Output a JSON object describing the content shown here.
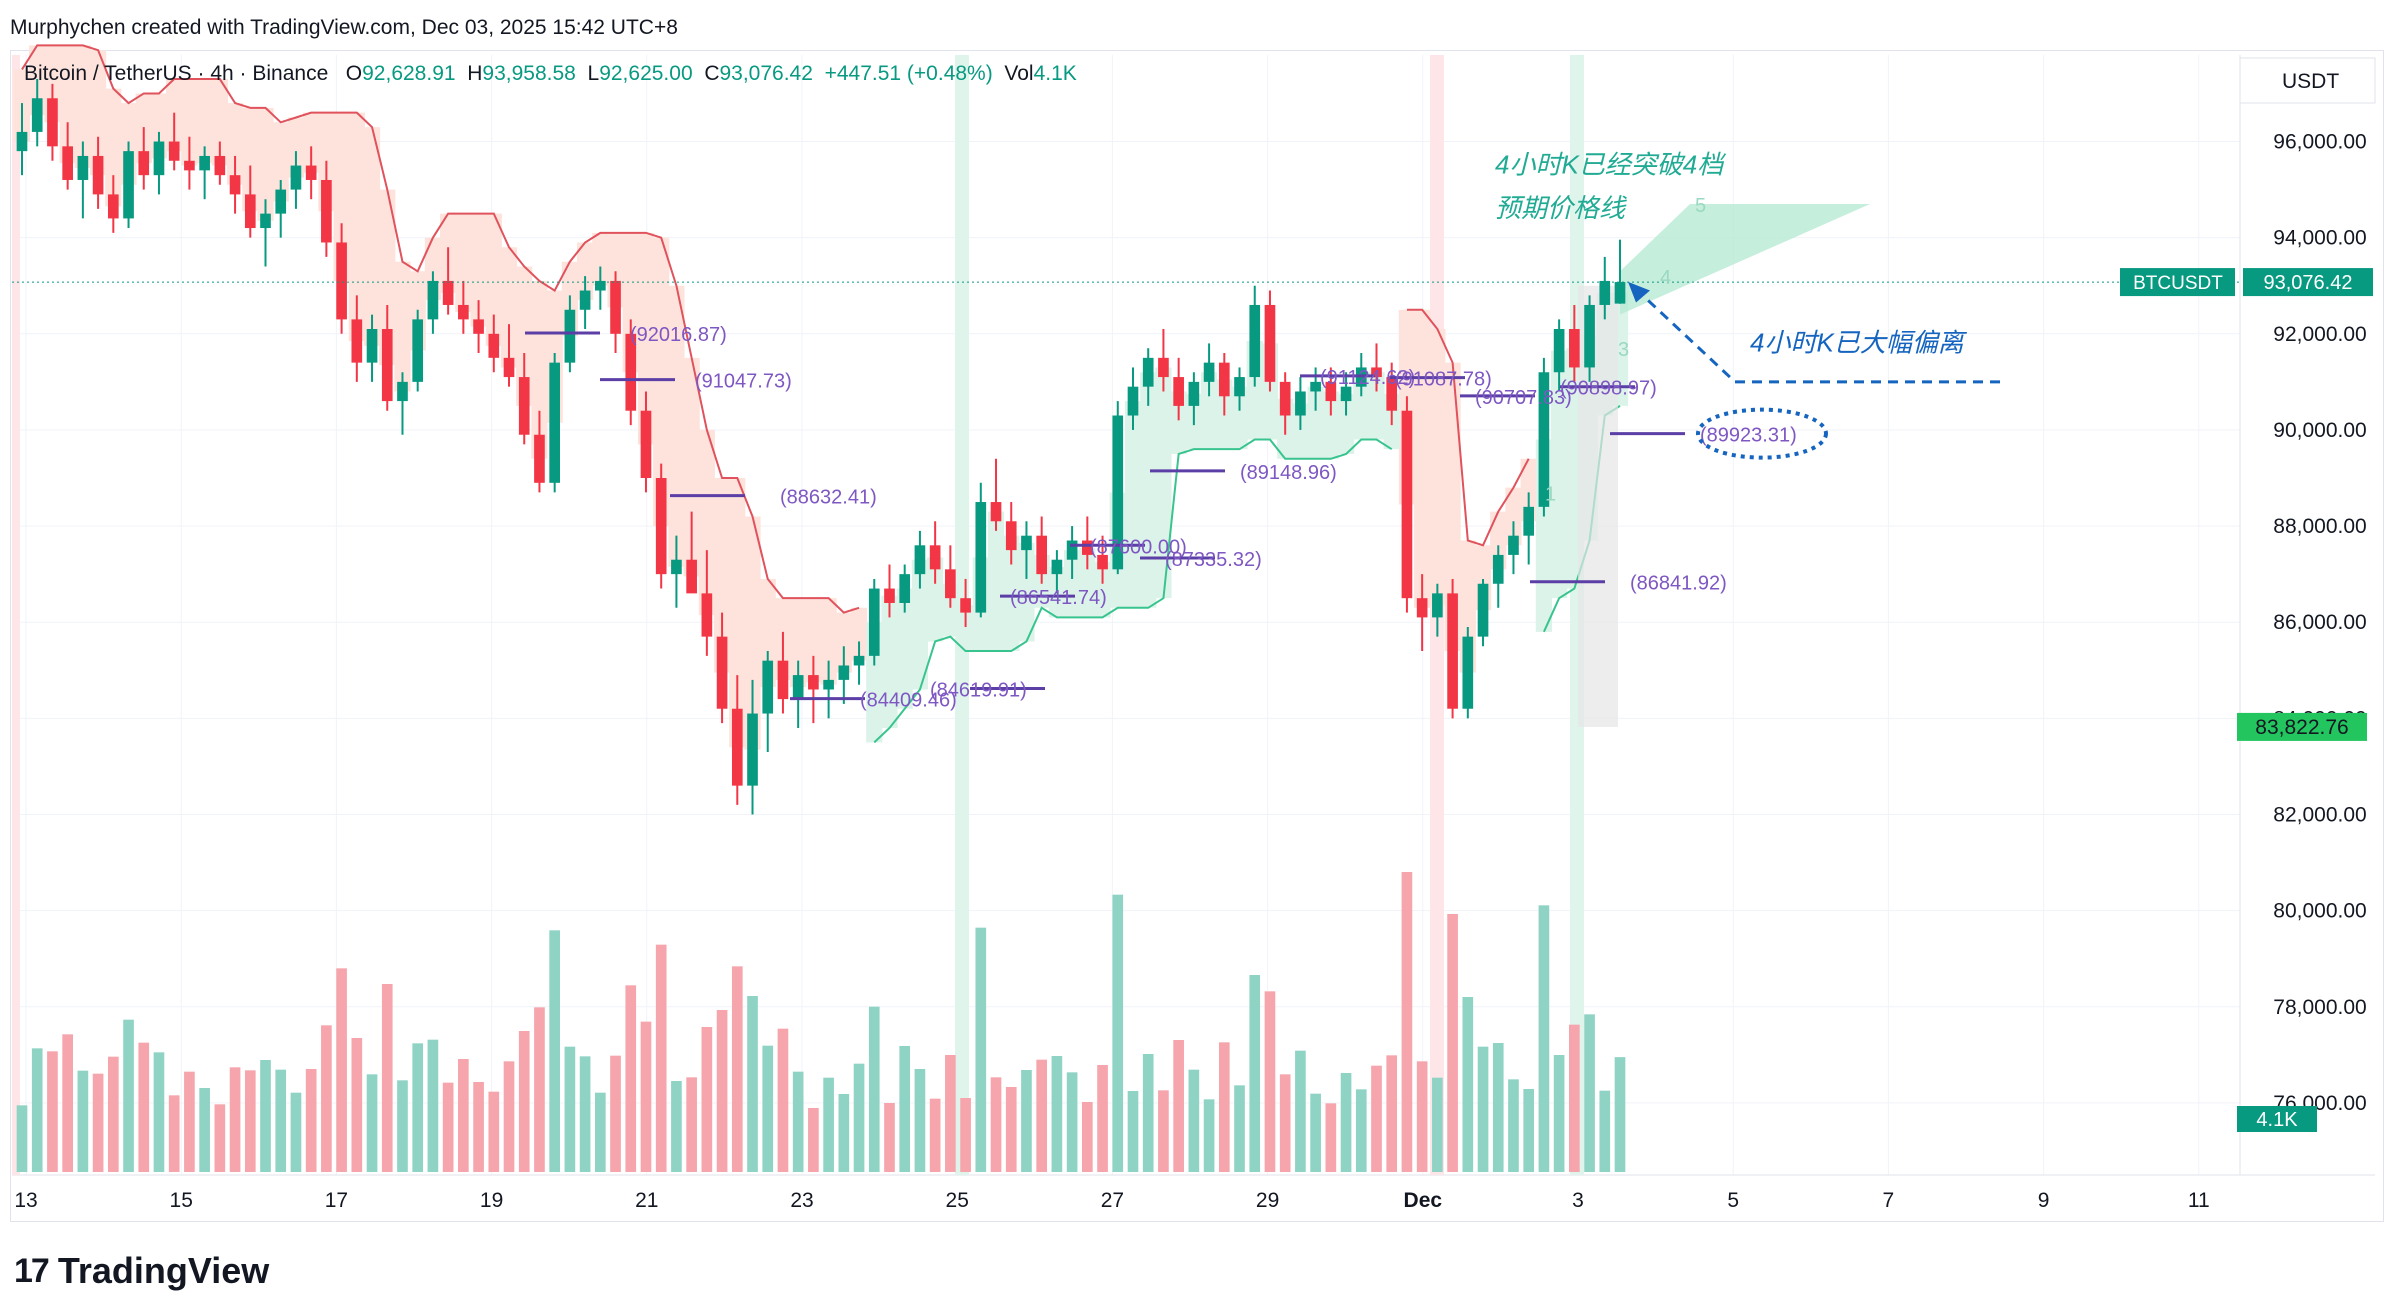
{
  "creator_line": "Murphychen created with TradingView.com, Dec 03, 2025 15:42 UTC+8",
  "legend": {
    "symbol": "Bitcoin / TetherUS · 4h · Binance",
    "o_label": "O",
    "o": "92,628.91",
    "h_label": "H",
    "h": "93,958.58",
    "l_label": "L",
    "l": "92,625.00",
    "c_label": "C",
    "c": "93,076.42",
    "change": "+447.51 (+0.48%)",
    "vol_label": "Vol",
    "vol": "4.1K"
  },
  "brand": "TradingView",
  "colors": {
    "up": "#089981",
    "down": "#f23645",
    "ma": "#5b3fa6",
    "annotation": "#1565c0",
    "annotation_green": "#22ab94"
  },
  "chart_data": {
    "type": "candlestick",
    "currency": "USDT",
    "y_ticks": [
      "96,000.00",
      "94,000.00",
      "92,000.00",
      "90,000.00",
      "88,000.00",
      "86,000.00",
      "84,000.00",
      "82,000.00",
      "80,000.00",
      "78,000.00",
      "76,000.00"
    ],
    "ylim": [
      74500,
      97800
    ],
    "x_ticks": [
      "13",
      "15",
      "17",
      "19",
      "21",
      "23",
      "25",
      "27",
      "29",
      "Dec",
      "3",
      "5",
      "7",
      "9",
      "11"
    ],
    "last_price": {
      "label": "BTCUSDT",
      "value": "93,076.42",
      "y": 93076
    },
    "supertrend_flip": {
      "value": "83,822.76",
      "y": 83822
    },
    "volume_tag": "4.1K",
    "candles": [
      [
        95800,
        96800,
        95300,
        96200
      ],
      [
        96200,
        97300,
        95900,
        96900
      ],
      [
        96900,
        97200,
        95600,
        95900
      ],
      [
        95900,
        96400,
        95000,
        95200
      ],
      [
        95200,
        96000,
        94400,
        95700
      ],
      [
        95700,
        96100,
        94600,
        94900
      ],
      [
        94900,
        95300,
        94100,
        94400
      ],
      [
        94400,
        96000,
        94200,
        95800
      ],
      [
        95800,
        96300,
        95000,
        95300
      ],
      [
        95300,
        96200,
        94900,
        96000
      ],
      [
        96000,
        96600,
        95400,
        95600
      ],
      [
        95600,
        96100,
        95000,
        95400
      ],
      [
        95400,
        95900,
        94800,
        95700
      ],
      [
        95700,
        96000,
        95100,
        95300
      ],
      [
        95300,
        95700,
        94500,
        94900
      ],
      [
        94900,
        95500,
        94000,
        94200
      ],
      [
        94200,
        94800,
        93400,
        94500
      ],
      [
        94500,
        95200,
        94000,
        95000
      ],
      [
        95000,
        95800,
        94600,
        95500
      ],
      [
        95500,
        95900,
        94800,
        95200
      ],
      [
        95200,
        95600,
        93600,
        93900
      ],
      [
        93900,
        94300,
        92000,
        92300
      ],
      [
        92300,
        92800,
        91000,
        91400
      ],
      [
        91400,
        92400,
        91000,
        92100
      ],
      [
        92100,
        92600,
        90400,
        90600
      ],
      [
        90600,
        91200,
        89900,
        91000
      ],
      [
        91000,
        92500,
        90800,
        92300
      ],
      [
        92300,
        93300,
        92000,
        93100
      ],
      [
        93100,
        93800,
        92400,
        92600
      ],
      [
        92600,
        93100,
        92000,
        92300
      ],
      [
        92300,
        92700,
        91600,
        92000
      ],
      [
        92000,
        92400,
        91200,
        91500
      ],
      [
        91500,
        92200,
        90900,
        91100
      ],
      [
        91100,
        91600,
        89700,
        89900
      ],
      [
        89900,
        90400,
        88700,
        88900
      ],
      [
        88900,
        91600,
        88700,
        91400
      ],
      [
        91400,
        92800,
        91200,
        92500
      ],
      [
        92500,
        93200,
        92100,
        92900
      ],
      [
        92900,
        93400,
        92500,
        93100
      ],
      [
        93100,
        93300,
        91600,
        92000
      ],
      [
        92000,
        92300,
        90100,
        90400
      ],
      [
        90400,
        90800,
        88700,
        89000
      ],
      [
        89000,
        89300,
        86700,
        87000
      ],
      [
        87000,
        87800,
        86300,
        87300
      ],
      [
        87300,
        88300,
        86800,
        86600
      ],
      [
        86600,
        87500,
        85300,
        85700
      ],
      [
        85700,
        86200,
        83900,
        84200
      ],
      [
        84200,
        84900,
        82200,
        82600
      ],
      [
        82600,
        84800,
        82000,
        84100
      ],
      [
        84100,
        85400,
        83300,
        85200
      ],
      [
        85200,
        85800,
        84100,
        84400
      ],
      [
        84400,
        85200,
        83800,
        84900
      ],
      [
        84900,
        85300,
        83900,
        84600
      ],
      [
        84600,
        85200,
        84000,
        84800
      ],
      [
        84800,
        85500,
        84300,
        85100
      ],
      [
        85100,
        85600,
        84700,
        85300
      ],
      [
        85300,
        86900,
        85100,
        86700
      ],
      [
        86700,
        87200,
        86100,
        86400
      ],
      [
        86400,
        87200,
        86200,
        87000
      ],
      [
        87000,
        87900,
        86700,
        87600
      ],
      [
        87600,
        88100,
        86800,
        87100
      ],
      [
        87100,
        87600,
        86300,
        86500
      ],
      [
        86500,
        86900,
        85900,
        86200
      ],
      [
        86200,
        88900,
        86100,
        88500
      ],
      [
        88500,
        89400,
        87900,
        88100
      ],
      [
        88100,
        88500,
        87200,
        87500
      ],
      [
        87500,
        88100,
        86900,
        87800
      ],
      [
        87800,
        88200,
        86800,
        87000
      ],
      [
        87000,
        87500,
        86600,
        87300
      ],
      [
        87300,
        88000,
        86900,
        87700
      ],
      [
        87700,
        88200,
        87100,
        87400
      ],
      [
        87400,
        87800,
        86800,
        87100
      ],
      [
        87100,
        90600,
        87000,
        90300
      ],
      [
        90300,
        91300,
        90000,
        90900
      ],
      [
        90900,
        91700,
        90500,
        91500
      ],
      [
        91500,
        92100,
        90800,
        91100
      ],
      [
        91100,
        91500,
        90200,
        90500
      ],
      [
        90500,
        91200,
        90100,
        91000
      ],
      [
        91000,
        91800,
        90700,
        91400
      ],
      [
        91400,
        91600,
        90300,
        90700
      ],
      [
        90700,
        91300,
        90400,
        91100
      ],
      [
        91100,
        93000,
        90900,
        92600
      ],
      [
        92600,
        92900,
        90800,
        91000
      ],
      [
        91000,
        91200,
        89900,
        90300
      ],
      [
        90300,
        91100,
        90000,
        90800
      ],
      [
        90800,
        91300,
        90400,
        91000
      ],
      [
        91000,
        91300,
        90300,
        90600
      ],
      [
        90600,
        91200,
        90300,
        90900
      ],
      [
        90900,
        91600,
        90700,
        91300
      ],
      [
        91300,
        91800,
        90800,
        91100
      ],
      [
        91100,
        91400,
        90100,
        90400
      ],
      [
        90400,
        90700,
        86200,
        86500
      ],
      [
        86500,
        87000,
        85400,
        86100
      ],
      [
        86100,
        86800,
        85700,
        86600
      ],
      [
        86600,
        86900,
        84000,
        84200
      ],
      [
        84200,
        85900,
        84000,
        85700
      ],
      [
        85700,
        86900,
        85500,
        86800
      ],
      [
        86800,
        87600,
        86300,
        87400
      ],
      [
        87400,
        88100,
        87000,
        87800
      ],
      [
        87800,
        88700,
        87200,
        88400
      ],
      [
        88400,
        91500,
        88200,
        91200
      ],
      [
        91200,
        92300,
        90800,
        92100
      ],
      [
        92100,
        92600,
        91000,
        91300
      ],
      [
        91300,
        92800,
        91000,
        92600
      ],
      [
        92600,
        93600,
        92300,
        93100
      ],
      [
        92628,
        93958,
        92625,
        93076
      ]
    ],
    "ma_segments": [
      {
        "label": "(92016.87)",
        "value": 92016.87
      },
      {
        "label": "(91047.73)",
        "value": 91047.73
      },
      {
        "label": "(88632.41)",
        "value": 88632.41
      },
      {
        "label": "(84409.46)",
        "value": 84409.46
      },
      {
        "label": "(84619.91)",
        "value": 84619.91
      },
      {
        "label": "(86541.74)",
        "value": 86541.74
      },
      {
        "label": "(87600.00)",
        "value": 87600.0
      },
      {
        "label": "(87335.32)",
        "value": 87335.32
      },
      {
        "label": "(89148.96)",
        "value": 89148.96
      },
      {
        "label": "(91124.62)",
        "value": 91124.62
      },
      {
        "label": "(91087.78)",
        "value": 91087.78
      },
      {
        "label": "(90707.83)",
        "value": 90707.83
      },
      {
        "label": "(90898.97)",
        "value": 90898.97
      },
      {
        "label": "(89923.31)",
        "value": 89923.31
      },
      {
        "label": "(86841.92)",
        "value": 86841.92
      }
    ],
    "annotations": [
      {
        "text": "4小时K已经突破4档",
        "y": 95500
      },
      {
        "text": "预期价格线",
        "y": 94600
      },
      {
        "text": "4小时K已大幅偏离",
        "y": 91800
      },
      {
        "text": "5",
        "y": 94700
      },
      {
        "text": "4",
        "y": 93200
      },
      {
        "text": "3",
        "y": 91700
      },
      {
        "text": "1",
        "y": 88700
      }
    ]
  }
}
